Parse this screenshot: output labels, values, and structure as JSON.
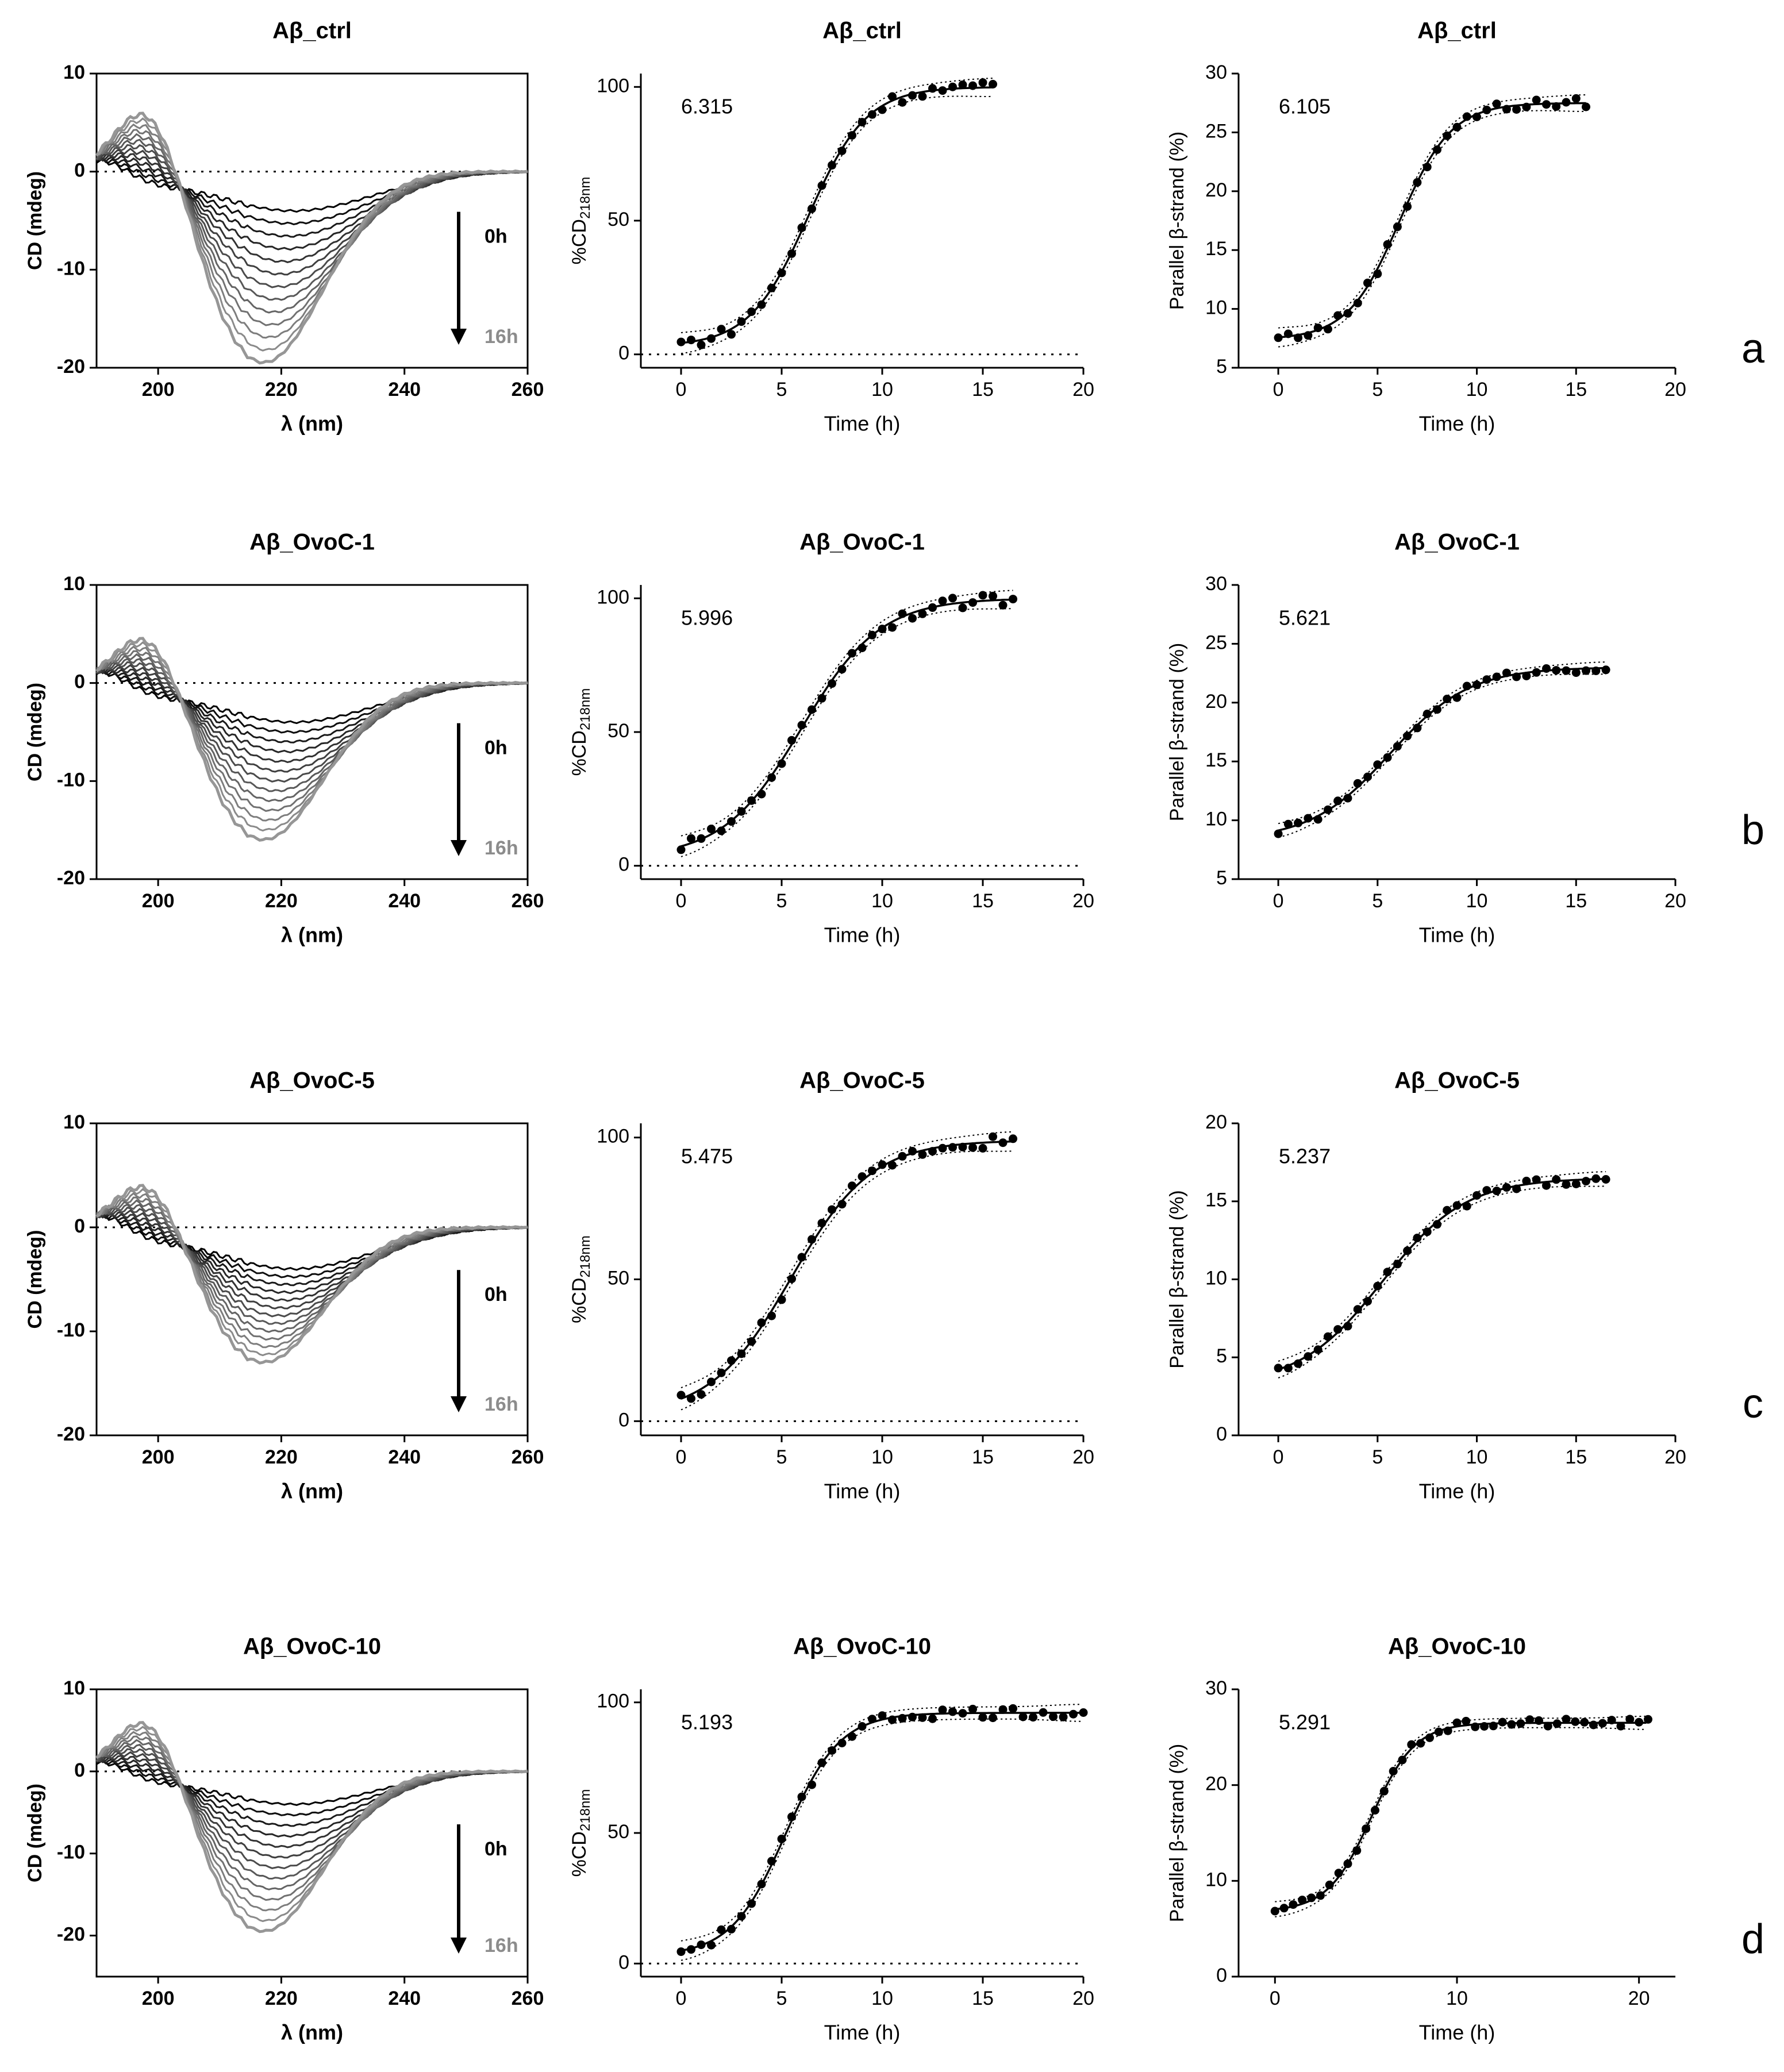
{
  "figure": {
    "row_labels": [
      "a",
      "b",
      "c",
      "d"
    ]
  },
  "colors": {
    "ink": "#000000",
    "early_trace": "#000000",
    "late_trace": "#a6a6a6",
    "late_label": "#8c8c8c"
  },
  "chart_data": [
    {
      "type": "line",
      "panel": "a-cd",
      "title": "Aβ_ctrl",
      "xlabel": "λ (nm)",
      "ylabel": "CD (mdeg)",
      "xlim": [
        190,
        260
      ],
      "ylim": [
        -20,
        10
      ],
      "xticks": [
        "200",
        "220",
        "240",
        "260"
      ],
      "yticks": [
        "-20",
        "-10",
        "0",
        "10"
      ],
      "arrow_start": "0h",
      "arrow_end": "16h",
      "max_peak": 9,
      "min_trough": -19.5,
      "traces": 13
    },
    {
      "type": "scatter",
      "panel": "a-cd218",
      "title": "Aβ_ctrl",
      "xlabel": "Time (h)",
      "ylabel": "%CD218nm",
      "xlim": [
        -2,
        20
      ],
      "ylim": [
        -5,
        105
      ],
      "xticks": [
        "0",
        "5",
        "10",
        "15",
        "20"
      ],
      "yticks": [
        "0",
        "50",
        "100"
      ],
      "annotation": "6.315",
      "sigmoid": {
        "bottom": 3,
        "top": 100,
        "t50": 6.315,
        "slope": 1.45,
        "tmax": 15.5
      }
    },
    {
      "type": "scatter",
      "panel": "a-beta",
      "title": "Aβ_ctrl",
      "xlabel": "Time (h)",
      "ylabel": "Parallel β-strand (%)",
      "xlim": [
        -2,
        20
      ],
      "ylim": [
        5,
        30
      ],
      "xticks": [
        "0",
        "5",
        "10",
        "15",
        "20"
      ],
      "yticks": [
        "5",
        "10",
        "15",
        "20",
        "25",
        "30"
      ],
      "annotation": "6.105",
      "sigmoid": {
        "bottom": 7.4,
        "top": 27.5,
        "t50": 6.105,
        "slope": 1.3,
        "tmax": 15.5
      }
    },
    {
      "type": "line",
      "panel": "b-cd",
      "title": "Aβ_OvoC-1",
      "xlabel": "λ (nm)",
      "ylabel": "CD (mdeg)",
      "xlim": [
        190,
        260
      ],
      "ylim": [
        -20,
        10
      ],
      "xticks": [
        "200",
        "220",
        "240",
        "260"
      ],
      "yticks": [
        "-20",
        "-10",
        "0",
        "10"
      ],
      "arrow_start": "0h",
      "arrow_end": "16h",
      "max_peak": 7,
      "min_trough": -16,
      "traces": 13
    },
    {
      "type": "scatter",
      "panel": "b-cd218",
      "title": "Aβ_OvoC-1",
      "xlabel": "Time (h)",
      "ylabel": "%CD218nm",
      "xlim": [
        -2,
        20
      ],
      "ylim": [
        -5,
        105
      ],
      "xticks": [
        "0",
        "5",
        "10",
        "15",
        "20"
      ],
      "yticks": [
        "0",
        "50",
        "100"
      ],
      "annotation": "5.996",
      "sigmoid": {
        "bottom": 3,
        "top": 100,
        "t50": 5.996,
        "slope": 1.95,
        "tmax": 16.5
      }
    },
    {
      "type": "scatter",
      "panel": "b-beta",
      "title": "Aβ_OvoC-1",
      "xlabel": "Time (h)",
      "ylabel": "Parallel β-strand (%)",
      "xlim": [
        -2,
        20
      ],
      "ylim": [
        5,
        30
      ],
      "xticks": [
        "0",
        "5",
        "10",
        "15",
        "20"
      ],
      "yticks": [
        "5",
        "10",
        "15",
        "20",
        "25",
        "30"
      ],
      "annotation": "5.621",
      "sigmoid": {
        "bottom": 8.3,
        "top": 23,
        "t50": 5.621,
        "slope": 2.0,
        "tmax": 16.5
      }
    },
    {
      "type": "line",
      "panel": "c-cd",
      "title": "Aβ_OvoC-5",
      "xlabel": "λ (nm)",
      "ylabel": "CD (mdeg)",
      "xlim": [
        190,
        260
      ],
      "ylim": [
        -20,
        10
      ],
      "xticks": [
        "200",
        "220",
        "240",
        "260"
      ],
      "yticks": [
        "-20",
        "-10",
        "0",
        "10"
      ],
      "arrow_start": "0h",
      "arrow_end": "16h",
      "max_peak": 6,
      "min_trough": -13,
      "traces": 13
    },
    {
      "type": "scatter",
      "panel": "c-cd218",
      "title": "Aβ_OvoC-5",
      "xlabel": "Time (h)",
      "ylabel": "%CD218nm",
      "xlim": [
        -2,
        20
      ],
      "ylim": [
        -5,
        105
      ],
      "xticks": [
        "0",
        "5",
        "10",
        "15",
        "20"
      ],
      "yticks": [
        "0",
        "50",
        "100"
      ],
      "annotation": "5.475",
      "sigmoid": {
        "bottom": 2,
        "top": 99,
        "t50": 5.475,
        "slope": 2.0,
        "tmax": 16.5
      }
    },
    {
      "type": "scatter",
      "panel": "c-beta",
      "title": "Aβ_OvoC-5",
      "xlabel": "Time (h)",
      "ylabel": "Parallel β-strand (%)",
      "xlim": [
        -2,
        20
      ],
      "ylim": [
        0,
        20
      ],
      "xticks": [
        "0",
        "5",
        "10",
        "15",
        "20"
      ],
      "yticks": [
        "0",
        "5",
        "10",
        "15",
        "20"
      ],
      "annotation": "5.237",
      "sigmoid": {
        "bottom": 3.2,
        "top": 16.5,
        "t50": 5.237,
        "slope": 2.1,
        "tmax": 16.5
      }
    },
    {
      "type": "line",
      "panel": "d-cd",
      "title": "Aβ_OvoC-10",
      "xlabel": "λ (nm)",
      "ylabel": "CD (mdeg)",
      "xlim": [
        190,
        260
      ],
      "ylim": [
        -25,
        10
      ],
      "xticks": [
        "200",
        "220",
        "240",
        "260"
      ],
      "yticks": [
        "-20",
        "-10",
        "0",
        "10"
      ],
      "arrow_start": "0h",
      "arrow_end": "16h",
      "max_peak": 9,
      "min_trough": -19.5,
      "traces": 13
    },
    {
      "type": "scatter",
      "panel": "d-cd218",
      "title": "Aβ_OvoC-10",
      "xlabel": "Time (h)",
      "ylabel": "%CD218nm",
      "xlim": [
        -2,
        20
      ],
      "ylim": [
        -5,
        105
      ],
      "xticks": [
        "0",
        "5",
        "10",
        "15",
        "20"
      ],
      "yticks": [
        "0",
        "50",
        "100"
      ],
      "annotation": "5.193",
      "sigmoid": {
        "bottom": 3,
        "top": 96,
        "t50": 5.193,
        "slope": 1.35,
        "tmax": 20
      }
    },
    {
      "type": "scatter",
      "panel": "d-beta",
      "title": "Aβ_OvoC-10",
      "xlabel": "Time (h)",
      "ylabel": "Parallel β-strand (%)",
      "xlim": [
        -2,
        22
      ],
      "ylim": [
        0,
        30
      ],
      "xticks": [
        "0",
        "10",
        "20"
      ],
      "yticks": [
        "0",
        "10",
        "20",
        "30"
      ],
      "annotation": "5.291",
      "sigmoid": {
        "bottom": 6.8,
        "top": 26.5,
        "t50": 5.291,
        "slope": 1.2,
        "tmax": 20.5
      }
    }
  ]
}
